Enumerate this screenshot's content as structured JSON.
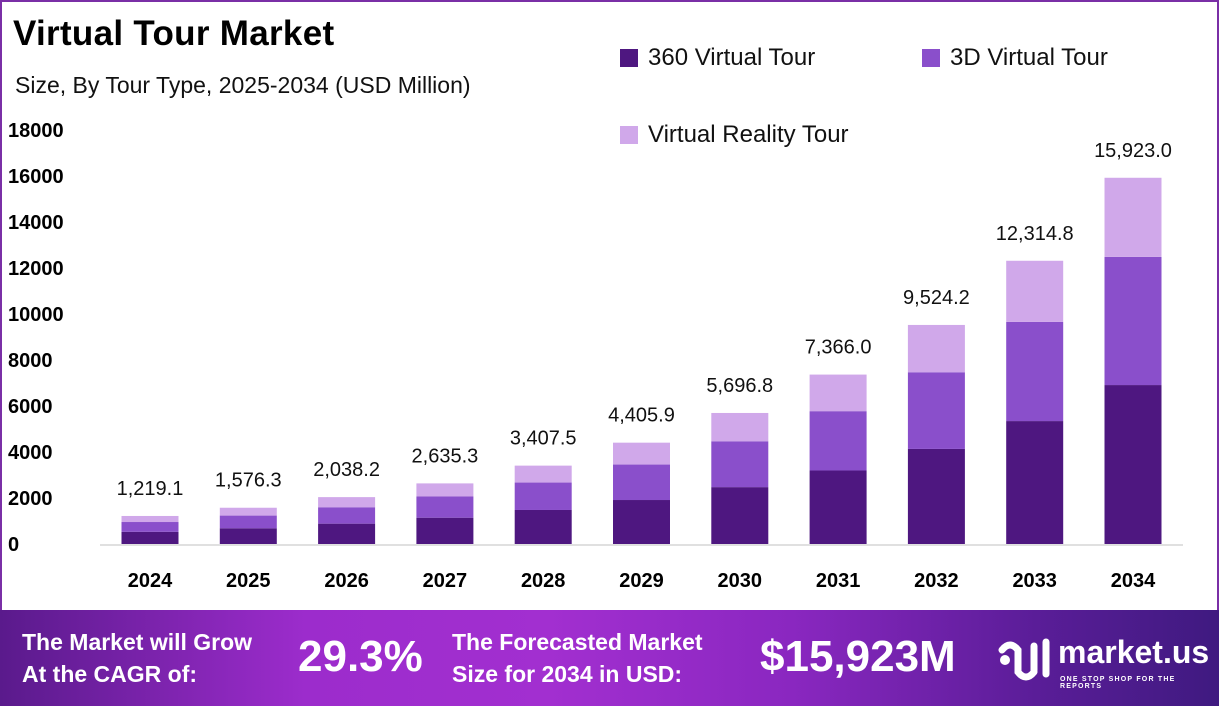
{
  "chart_data": {
    "type": "bar",
    "stacked": true,
    "title": "Virtual Tour Market",
    "subtitle": "Size, By Tour Type, 2025-2034 (USD Million)",
    "categories": [
      "2024",
      "2025",
      "2026",
      "2027",
      "2028",
      "2029",
      "2030",
      "2031",
      "2032",
      "2033",
      "2034"
    ],
    "totals_labels": [
      "1,219.1",
      "1,576.3",
      "2,038.2",
      "2,635.3",
      "3,407.5",
      "4,405.9",
      "5,696.8",
      "7,366.0",
      "9,524.2",
      "12,314.8",
      "15,923.0"
    ],
    "series": [
      {
        "name": "360 Virtual Tour",
        "color": "#4e1780",
        "values": [
          529.1,
          684.1,
          884.6,
          1143.7,
          1478.9,
          1912.2,
          2472.4,
          3196.8,
          4133.5,
          5344.6,
          6910.6
        ]
      },
      {
        "name": "3D Virtual Tour",
        "color": "#8a4fcb",
        "values": [
          426.7,
          551.7,
          713.4,
          922.4,
          1192.6,
          1542.1,
          1993.9,
          2578.1,
          3333.5,
          4310.2,
          5573.1
        ]
      },
      {
        "name": "Virtual Reality Tour",
        "color": "#d0a8ea",
        "values": [
          263.3,
          340.5,
          440.2,
          569.2,
          736.0,
          951.6,
          1230.5,
          1591.1,
          2057.2,
          2660.0,
          3439.3
        ]
      }
    ],
    "yticks": [
      "0",
      "2000",
      "4000",
      "6000",
      "8000",
      "10000",
      "12000",
      "14000",
      "16000",
      "18000"
    ],
    "ylim": [
      0,
      18000
    ],
    "grid": false,
    "legend_position": "top-right"
  },
  "footer": {
    "cagr_text_1": "The Market will Grow",
    "cagr_text_2": "At the CAGR of:",
    "cagr_value": "29.3%",
    "forecast_text_1": "The Forecasted Market",
    "forecast_text_2": "Size for 2034 in USD:",
    "forecast_value": "$15,923M",
    "logo_name": "market.us",
    "logo_tagline": "ONE STOP SHOP FOR THE REPORTS"
  }
}
